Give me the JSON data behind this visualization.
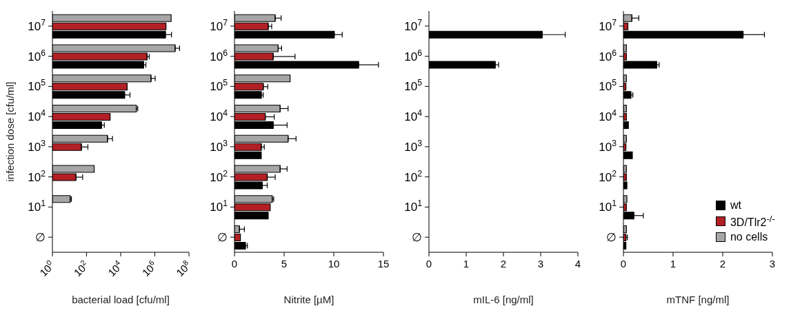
{
  "chart_data": [
    {
      "type": "bar",
      "orientation": "horizontal",
      "categories": [
        "10$^{7}$",
        "10$^{6}$",
        "10$^{5}$",
        "10$^{4}$",
        "10$^{3}$",
        "10$^{2}$",
        "10$^{1}$",
        "∅"
      ],
      "ylabel": "infection dose [cfu/ml]",
      "xlabel": "bacterial load [cfu/ml]",
      "log": "x",
      "xlim": [
        1,
        100000000
      ],
      "xticks": [
        {
          "value": 1,
          "label": "10$^{0}$"
        },
        {
          "value": 100,
          "label": "10$^{2}$"
        },
        {
          "value": 10000,
          "label": "10$^{4}$"
        },
        {
          "value": 1000000,
          "label": "10$^{6}$"
        },
        {
          "value": 100000000,
          "label": "10$^{8}$"
        }
      ],
      "grid": false,
      "legend": false,
      "series": [
        {
          "color": "#a6a6a6",
          "values": [
            9000000,
            15500000,
            600000,
            82000,
            1700,
            280,
            11,
            null
          ],
          "errors": [
            null,
            12500000,
            450000,
            18000,
            1600,
            null,
            2,
            null
          ]
        },
        {
          "color": "#b22025",
          "values": [
            4500000,
            350000,
            24000,
            2400,
            50,
            24,
            null,
            null
          ],
          "errors": [
            null,
            120000,
            null,
            null,
            70,
            35,
            null,
            null
          ]
        },
        {
          "color": "#000000",
          "values": [
            4200000,
            220000,
            17000,
            750,
            null,
            null,
            null,
            null
          ],
          "errors": [
            5300000,
            80000,
            18000,
            350,
            null,
            null,
            null,
            null
          ]
        }
      ]
    },
    {
      "type": "bar",
      "orientation": "horizontal",
      "categories": [
        "10$^{7}$",
        "10$^{6}$",
        "10$^{5}$",
        "10$^{4}$",
        "10$^{3}$",
        "10$^{2}$",
        "10$^{1}$",
        "∅"
      ],
      "xlabel": "Nitrite [µM]",
      "xlim": [
        0,
        15
      ],
      "xticks": [
        0,
        5,
        10,
        15
      ],
      "grid": false,
      "legend": false,
      "series": [
        {
          "color": "#a6a6a6",
          "values": [
            4.1,
            4.4,
            5.6,
            4.6,
            5.4,
            4.6,
            3.8,
            0.5
          ],
          "errors": [
            0.6,
            0.35,
            null,
            0.8,
            0.8,
            0.7,
            0.15,
            0.5
          ]
        },
        {
          "color": "#b22025",
          "values": [
            3.4,
            3.9,
            2.9,
            3.1,
            2.7,
            3.3,
            3.6,
            0.6
          ],
          "errors": [
            0.35,
            2.2,
            0.45,
            0.9,
            0.3,
            0.8,
            null,
            null
          ]
        },
        {
          "color": "#000000",
          "values": [
            10.05,
            12.5,
            2.7,
            3.9,
            2.7,
            2.8,
            3.4,
            1.1
          ],
          "errors": [
            0.8,
            2.0,
            0.2,
            1.4,
            null,
            0.5,
            null,
            0.2
          ]
        }
      ]
    },
    {
      "type": "bar",
      "orientation": "horizontal",
      "categories": [
        "10$^{7}$",
        "10$^{6}$",
        "10$^{5}$",
        "10$^{4}$",
        "10$^{3}$",
        "10$^{2}$",
        "10$^{1}$",
        "∅"
      ],
      "xlabel": "mIL-6 [ng/ml]",
      "xlim": [
        0,
        4
      ],
      "xticks": [
        0,
        1,
        2,
        3,
        4
      ],
      "grid": false,
      "legend": false,
      "series": [
        {
          "color": "#a6a6a6",
          "values": [
            null,
            null,
            null,
            null,
            null,
            null,
            null,
            null
          ]
        },
        {
          "color": "#b22025",
          "values": [
            null,
            null,
            null,
            null,
            null,
            null,
            null,
            null
          ]
        },
        {
          "color": "#000000",
          "values": [
            3.04,
            1.78,
            null,
            null,
            null,
            null,
            null,
            null
          ],
          "errors": [
            0.62,
            0.09,
            null,
            null,
            null,
            null,
            null,
            null
          ]
        }
      ]
    },
    {
      "type": "bar",
      "orientation": "horizontal",
      "categories": [
        "10$^{7}$",
        "10$^{6}$",
        "10$^{5}$",
        "10$^{4}$",
        "10$^{3}$",
        "10$^{2}$",
        "10$^{1}$",
        "∅"
      ],
      "xlabel": "mTNF [ng/ml]",
      "xlim": [
        0,
        3
      ],
      "xticks": [
        0,
        1,
        2,
        3
      ],
      "grid": false,
      "legend": "bottom right",
      "series": [
        {
          "name": "no cells",
          "color": "#a6a6a6",
          "values": [
            0.17,
            0.06,
            0.06,
            0.06,
            0.06,
            0.06,
            0.07,
            0.06
          ],
          "errors": [
            0.14,
            null,
            null,
            null,
            null,
            null,
            null,
            null
          ]
        },
        {
          "name": "3D/Tlr2$^{-/-}$",
          "color": "#b22025",
          "values": [
            0.09,
            0.06,
            0.05,
            0.06,
            0.05,
            0.06,
            0.06,
            0.05
          ],
          "errors": [
            null,
            null,
            null,
            null,
            null,
            null,
            null,
            0.03
          ]
        },
        {
          "name": "wt",
          "color": "#000000",
          "values": [
            2.41,
            0.67,
            0.15,
            0.1,
            0.18,
            0.07,
            0.21,
            0.05
          ],
          "errors": [
            0.43,
            0.05,
            0.04,
            null,
            null,
            null,
            0.19,
            null
          ]
        }
      ]
    }
  ]
}
